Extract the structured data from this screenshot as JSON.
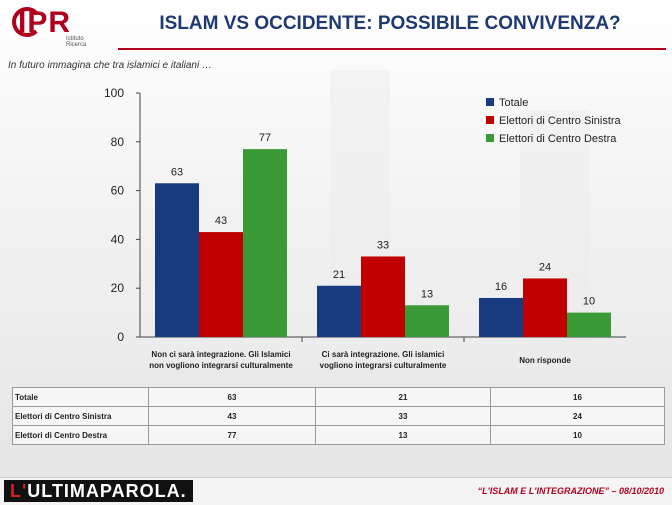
{
  "header": {
    "logo_text": "IPR",
    "logo_sub": "Istituto Ricerca",
    "title": "ISLAM VS OCCIDENTE: POSSIBILE CONVIVENZA?",
    "subtitle": "In futuro immagina che tra islamici e italiani …"
  },
  "colors": {
    "totale": "#173a80",
    "centro_sinistra": "#c00000",
    "centro_destra": "#3a9a35",
    "accent": "#b0001e"
  },
  "chart_data": {
    "type": "bar",
    "categories": [
      "Non ci sarà integrazione. Gli Islamici non vogliono integrarsi culturalmente",
      "Ci sarà integrazione. Gli islamici vogliono integrarsi culturalmente",
      "Non risponde"
    ],
    "series": [
      {
        "name": "Totale",
        "values": [
          63,
          21,
          16
        ]
      },
      {
        "name": "Elettori di Centro Sinistra",
        "values": [
          43,
          33,
          24
        ]
      },
      {
        "name": "Elettori di Centro Destra",
        "values": [
          77,
          13,
          10
        ]
      }
    ],
    "ylim": [
      0,
      100
    ],
    "yticks": [
      0,
      20,
      40,
      60,
      80,
      100
    ],
    "legend": "top-right",
    "data_labels": true
  },
  "table": {
    "rows": [
      {
        "label": "Totale",
        "values": [
          "63",
          "21",
          "16"
        ]
      },
      {
        "label": "Elettori di Centro Sinistra",
        "values": [
          "43",
          "33",
          "24"
        ]
      },
      {
        "label": "Elettori di Centro Destra",
        "values": [
          "77",
          "13",
          "10"
        ]
      }
    ]
  },
  "footer": {
    "brand_a": "L'",
    "brand_b": "ULTIMAPAROLA.",
    "caption": "“L'ISLAM E L'INTEGRAZIONE” – 08/10/2010"
  }
}
